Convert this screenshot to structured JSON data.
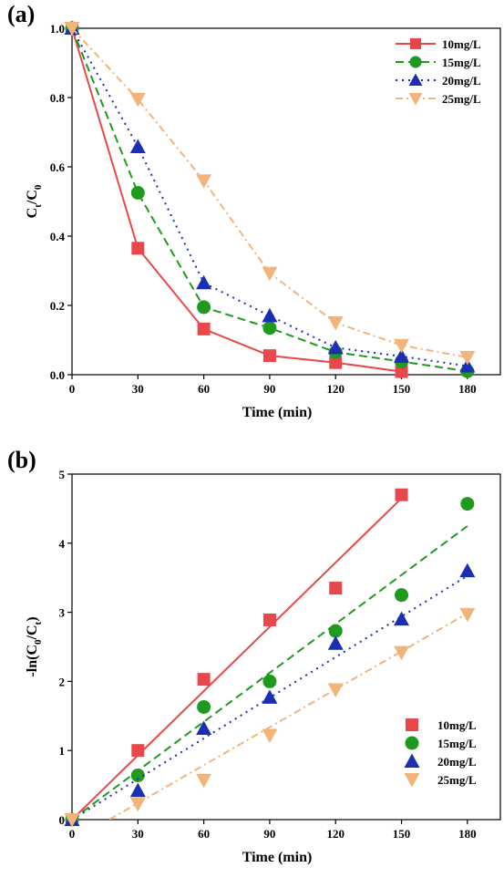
{
  "chart_data": [
    {
      "panel": "(a)",
      "type": "line",
      "title": "",
      "xlabel": "Time (min)",
      "ylabel": "C_t/C_0",
      "ylabel_main": "C",
      "ylabel_sub1": "t",
      "ylabel_slash": "/C",
      "ylabel_sub2": "0",
      "xlim": [
        0,
        195
      ],
      "ylim": [
        0,
        1.0
      ],
      "xticks": [
        0,
        30,
        60,
        90,
        120,
        150,
        180
      ],
      "yticks": [
        0.0,
        0.2,
        0.4,
        0.6,
        0.8,
        1.0
      ],
      "ytick_labels": [
        "0.0",
        "0.2",
        "0.4",
        "0.6",
        "0.8",
        "1.0"
      ],
      "grid": false,
      "legend_position": "top-right",
      "x": [
        0,
        30,
        60,
        90,
        120,
        150,
        180
      ],
      "series": [
        {
          "name": "10mg/L",
          "color": "#e8474b",
          "marker": "square",
          "dash": "solid",
          "values": [
            1.0,
            0.365,
            0.132,
            0.055,
            0.035,
            0.009,
            null
          ]
        },
        {
          "name": "15mg/L",
          "color": "#1f9a1f",
          "marker": "circle",
          "dash": "long-dash",
          "values": [
            1.0,
            0.525,
            0.195,
            0.135,
            0.065,
            0.038,
            0.01
          ]
        },
        {
          "name": "20mg/L",
          "color": "#1c2fb3",
          "marker": "triangle-up",
          "dash": "dotted",
          "values": [
            1.0,
            0.658,
            0.265,
            0.17,
            0.078,
            0.053,
            0.025
          ]
        },
        {
          "name": "25mg/L",
          "color": "#f2b47a",
          "marker": "triangle-down",
          "dash": "dash-dot",
          "values": [
            1.0,
            0.795,
            0.56,
            0.293,
            0.15,
            0.085,
            0.05
          ]
        }
      ]
    },
    {
      "panel": "(b)",
      "type": "scatter",
      "title": "",
      "xlabel": "Time (min)",
      "ylabel": "-ln(C_0/C_t)",
      "ylabel_main": "-ln(C",
      "ylabel_sub1": "0",
      "ylabel_slash": "/C",
      "ylabel_sub2": "t",
      "ylabel_close": ")",
      "xlim": [
        0,
        195
      ],
      "ylim": [
        0,
        5
      ],
      "xticks": [
        0,
        30,
        60,
        90,
        120,
        150,
        180
      ],
      "yticks": [
        0,
        1,
        2,
        3,
        4,
        5
      ],
      "ytick_labels": [
        "0",
        "1",
        "2",
        "3",
        "4",
        "5"
      ],
      "grid": false,
      "legend_position": "bottom-right",
      "x": [
        0,
        30,
        60,
        90,
        120,
        150,
        180
      ],
      "series": [
        {
          "name": "10mg/L",
          "color": "#e8474b",
          "marker": "square",
          "dash": "solid",
          "values": [
            0,
            1.0,
            2.03,
            2.89,
            3.35,
            4.7,
            null
          ],
          "fit": {
            "slope": 0.031,
            "intercept": 0.0,
            "x_range": [
              0,
              150
            ]
          }
        },
        {
          "name": "15mg/L",
          "color": "#1f9a1f",
          "marker": "circle",
          "dash": "long-dash",
          "values": [
            0,
            0.64,
            1.63,
            2.0,
            2.73,
            3.25,
            4.57
          ],
          "fit": {
            "slope": 0.0236,
            "intercept": 0.0,
            "x_range": [
              0,
              180
            ]
          }
        },
        {
          "name": "20mg/L",
          "color": "#1c2fb3",
          "marker": "triangle-up",
          "dash": "dotted",
          "values": [
            0,
            0.42,
            1.32,
            1.77,
            2.55,
            2.9,
            3.6
          ],
          "fit": {
            "slope": 0.0196,
            "intercept": 0.0,
            "x_range": [
              0,
              180
            ]
          }
        },
        {
          "name": "25mg/L",
          "color": "#f2b47a",
          "marker": "triangle-down",
          "dash": "dash-dot",
          "values": [
            0,
            0.23,
            0.57,
            1.22,
            1.88,
            2.42,
            2.97
          ],
          "fit": {
            "slope": 0.0183,
            "intercept": -0.31,
            "x_range": [
              17,
              180
            ]
          }
        }
      ]
    }
  ]
}
